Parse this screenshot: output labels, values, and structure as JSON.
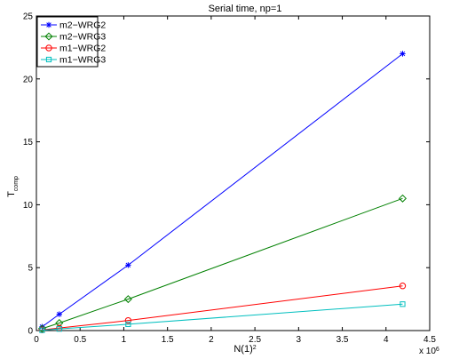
{
  "chart_data": {
    "type": "line",
    "title": "Serial time, np=1",
    "xlabel": {
      "main": "N(1)",
      "sup": "2"
    },
    "ylabel": {
      "main": "T",
      "sub": "comp"
    },
    "x_multiplier": {
      "main": "x 10",
      "sup": "6"
    },
    "xlim": [
      0,
      4.5
    ],
    "ylim": [
      0,
      25
    ],
    "xticks": [
      0,
      0.5,
      1,
      1.5,
      2,
      2.5,
      3,
      3.5,
      4,
      4.5
    ],
    "xtick_labels": [
      "0",
      "0.5",
      "1",
      "1.5",
      "2",
      "2.5",
      "3",
      "3.5",
      "4",
      "4.5"
    ],
    "yticks": [
      0,
      5,
      10,
      15,
      20,
      25
    ],
    "ytick_labels": [
      "0",
      "5",
      "10",
      "15",
      "20",
      "25"
    ],
    "legend_position": "top-left",
    "grid": false,
    "x": [
      0.0655,
      0.262,
      1.05,
      4.19
    ],
    "series": [
      {
        "name": "m2−WRG2",
        "color": "#0000ff",
        "marker": "asterisk",
        "values": [
          0.3,
          1.3,
          5.2,
          22.0
        ]
      },
      {
        "name": "m2−WRG3",
        "color": "#008000",
        "marker": "diamond",
        "values": [
          0.15,
          0.6,
          2.5,
          10.5
        ]
      },
      {
        "name": "m1−WRG2",
        "color": "#ff0000",
        "marker": "circle",
        "values": [
          0.05,
          0.2,
          0.8,
          3.55
        ]
      },
      {
        "name": "m1−WRG3",
        "color": "#00bfbf",
        "marker": "square",
        "values": [
          0.03,
          0.13,
          0.5,
          2.1
        ]
      }
    ]
  }
}
